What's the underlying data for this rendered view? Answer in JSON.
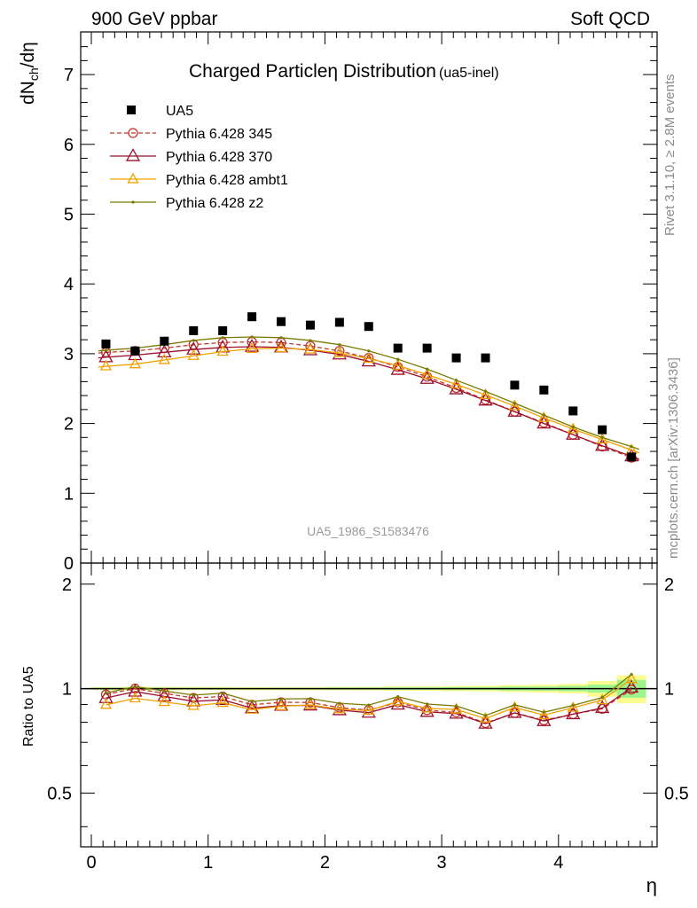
{
  "header": {
    "left": "900 GeV ppbar",
    "right": "Soft QCD"
  },
  "side": {
    "rivet": "Rivet 3.1.10, ≥ 2.8M events",
    "mcplots": "mcplots.cern.ch [arXiv:1306.3436]"
  },
  "watermark": "UA5_1986_S1583476",
  "chart_data": {
    "type": "line",
    "title": "Charged Particle η Distribution",
    "title_main": "Charged Particle",
    "title_eta": "η",
    "title_rest": " Distribution",
    "title_sub": "(ua5-inel)",
    "ylabel_main": "dN",
    "ylabel_sub": "ch",
    "ylabel_tail": "/dη",
    "ratio_ylabel": "Ratio to UA5",
    "xlabel": "η",
    "xlim": [
      -0.1,
      4.85
    ],
    "ylim": [
      0,
      7.6
    ],
    "ratio_ylim": [
      0.35,
      2.3
    ],
    "ratio_scale": "log",
    "x_ticks": [
      "0",
      "1",
      "2",
      "3",
      "4"
    ],
    "y_ticks": [
      "0",
      "1",
      "2",
      "3",
      "4",
      "5",
      "6",
      "7"
    ],
    "ratio_ticks": [
      "0.5",
      "1",
      "2"
    ],
    "legend_position": "top-left",
    "x": [
      0.125,
      0.375,
      0.625,
      0.875,
      1.125,
      1.375,
      1.625,
      1.875,
      2.125,
      2.375,
      2.625,
      2.875,
      3.125,
      3.375,
      3.625,
      3.875,
      4.125,
      4.375,
      4.625
    ],
    "data": {
      "name": "UA5",
      "values": [
        3.14,
        3.04,
        3.18,
        3.33,
        3.33,
        3.53,
        3.46,
        3.41,
        3.45,
        3.39,
        3.08,
        3.08,
        2.94,
        2.94,
        2.55,
        2.48,
        2.18,
        1.91,
        1.52
      ],
      "err_inner": [
        0.02,
        0.02,
        0.02,
        0.02,
        0.02,
        0.02,
        0.02,
        0.02,
        0.025,
        0.025,
        0.025,
        0.025,
        0.03,
        0.03,
        0.035,
        0.035,
        0.04,
        0.05,
        0.09
      ],
      "err_outer": [
        0.03,
        0.035,
        0.035,
        0.035,
        0.035,
        0.035,
        0.035,
        0.035,
        0.04,
        0.04,
        0.045,
        0.045,
        0.05,
        0.055,
        0.06,
        0.065,
        0.07,
        0.1,
        0.14
      ]
    },
    "series": [
      {
        "name": "Pythia 6.428 345",
        "color": "#c0392b",
        "marker": "circle",
        "dashed": true,
        "values": [
          3.02,
          3.04,
          3.08,
          3.13,
          3.16,
          3.17,
          3.16,
          3.11,
          3.04,
          2.94,
          2.81,
          2.67,
          2.51,
          2.34,
          2.17,
          2.01,
          1.84,
          1.67,
          1.51
        ]
      },
      {
        "name": "Pythia 6.428 370",
        "color": "#9b0f2f",
        "marker": "triangle",
        "dashed": false,
        "values": [
          2.95,
          2.98,
          3.02,
          3.06,
          3.09,
          3.1,
          3.09,
          3.05,
          2.99,
          2.89,
          2.77,
          2.64,
          2.49,
          2.33,
          2.17,
          2.0,
          1.84,
          1.68,
          1.53
        ]
      },
      {
        "name": "Pythia 6.428 ambt1",
        "color": "#f0a000",
        "marker": "triangle",
        "dashed": false,
        "values": [
          2.82,
          2.85,
          2.91,
          2.97,
          3.03,
          3.07,
          3.08,
          3.06,
          3.01,
          2.93,
          2.83,
          2.7,
          2.56,
          2.41,
          2.25,
          2.08,
          1.92,
          1.77,
          1.62
        ]
      },
      {
        "name": "Pythia 6.428 z2",
        "color": "#7a7a00",
        "marker": "dot",
        "dashed": false,
        "values": [
          3.05,
          3.08,
          3.13,
          3.19,
          3.23,
          3.24,
          3.23,
          3.19,
          3.13,
          3.04,
          2.92,
          2.78,
          2.62,
          2.46,
          2.29,
          2.12,
          1.95,
          1.8,
          1.67
        ]
      }
    ]
  }
}
